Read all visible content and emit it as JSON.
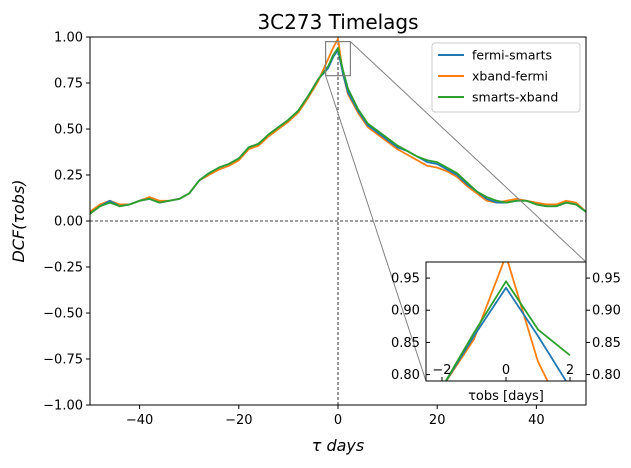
{
  "chart_data": {
    "type": "line",
    "title": "3C273     Timelags",
    "xlabel": "τ  days",
    "ylabel": "DCF(τobs)",
    "xlim": [
      -50,
      50
    ],
    "ylim": [
      -1.0,
      1.0
    ],
    "xticks": [
      -40,
      -20,
      0,
      20,
      40
    ],
    "yticks": [
      -1.0,
      -0.75,
      -0.5,
      -0.25,
      0.0,
      0.25,
      0.5,
      0.75,
      1.0
    ],
    "xtick_labels": [
      "−40",
      "−20",
      "0",
      "20",
      "40"
    ],
    "ytick_labels": [
      "−1.00",
      "−0.75",
      "−0.50",
      "−0.25",
      "0.00",
      "0.25",
      "0.50",
      "0.75",
      "1.00"
    ],
    "grid": false,
    "legend_position": "top-right",
    "reference_lines": {
      "horizontal_y": 0,
      "vertical_x": 0
    },
    "colors": {
      "fermi-smarts": "#1f77b4",
      "xband-fermi": "#ff7f0e",
      "smarts-xband": "#2ca02c"
    },
    "x": [
      -50,
      -48,
      -46,
      -44,
      -42,
      -40,
      -38,
      -36,
      -34,
      -32,
      -30,
      -28,
      -26,
      -24,
      -22,
      -20,
      -18,
      -16,
      -14,
      -12,
      -10,
      -8,
      -6,
      -4,
      -2,
      -1,
      0,
      1,
      2,
      4,
      6,
      8,
      10,
      12,
      14,
      16,
      18,
      20,
      22,
      24,
      26,
      28,
      30,
      32,
      34,
      36,
      38,
      40,
      42,
      44,
      46,
      48,
      50
    ],
    "series": [
      {
        "name": "fermi-smarts",
        "values": [
          0.04,
          0.08,
          0.11,
          0.08,
          0.09,
          0.11,
          0.12,
          0.1,
          0.11,
          0.12,
          0.15,
          0.22,
          0.26,
          0.29,
          0.31,
          0.34,
          0.4,
          0.42,
          0.47,
          0.51,
          0.55,
          0.6,
          0.68,
          0.77,
          0.83,
          0.89,
          0.93,
          0.8,
          0.7,
          0.6,
          0.52,
          0.48,
          0.44,
          0.4,
          0.38,
          0.35,
          0.32,
          0.31,
          0.28,
          0.25,
          0.2,
          0.16,
          0.12,
          0.1,
          0.1,
          0.11,
          0.11,
          0.09,
          0.08,
          0.08,
          0.1,
          0.09,
          0.05
        ]
      },
      {
        "name": "xband-fermi",
        "values": [
          0.05,
          0.09,
          0.11,
          0.09,
          0.09,
          0.11,
          0.13,
          0.11,
          0.11,
          0.12,
          0.15,
          0.22,
          0.25,
          0.28,
          0.3,
          0.33,
          0.39,
          0.41,
          0.46,
          0.5,
          0.54,
          0.59,
          0.67,
          0.76,
          0.88,
          0.94,
          0.99,
          0.8,
          0.69,
          0.59,
          0.51,
          0.47,
          0.43,
          0.39,
          0.36,
          0.33,
          0.3,
          0.29,
          0.27,
          0.24,
          0.19,
          0.15,
          0.11,
          0.1,
          0.11,
          0.12,
          0.11,
          0.1,
          0.09,
          0.09,
          0.11,
          0.1,
          0.05
        ]
      },
      {
        "name": "smarts-xband",
        "values": [
          0.04,
          0.08,
          0.1,
          0.08,
          0.09,
          0.11,
          0.12,
          0.1,
          0.11,
          0.12,
          0.15,
          0.22,
          0.26,
          0.29,
          0.31,
          0.34,
          0.4,
          0.42,
          0.47,
          0.51,
          0.55,
          0.6,
          0.68,
          0.77,
          0.84,
          0.9,
          0.94,
          0.82,
          0.72,
          0.61,
          0.53,
          0.49,
          0.45,
          0.41,
          0.38,
          0.35,
          0.33,
          0.32,
          0.29,
          0.26,
          0.21,
          0.16,
          0.13,
          0.11,
          0.1,
          0.11,
          0.11,
          0.09,
          0.08,
          0.08,
          0.1,
          0.09,
          0.05
        ]
      }
    ],
    "inset": {
      "xlim": [
        -2.5,
        2.5
      ],
      "ylim": [
        0.79,
        0.975
      ],
      "xticks": [
        -2,
        0,
        2
      ],
      "yticks": [
        0.8,
        0.85,
        0.9,
        0.95
      ],
      "xtick_labels": [
        "−2",
        "0",
        "2"
      ],
      "ytick_labels": [
        "0.80",
        "0.85",
        "0.90",
        "0.95"
      ],
      "xlabel": "τobs [days]",
      "x": [
        -2,
        -1,
        0,
        1,
        2
      ],
      "series": [
        {
          "name": "fermi-smarts",
          "values": [
            0.78,
            0.86,
            0.935,
            0.86,
            0.78
          ]
        },
        {
          "name": "xband-fermi",
          "values": [
            0.78,
            0.855,
            0.985,
            0.82,
            0.72
          ]
        },
        {
          "name": "smarts-xband",
          "values": [
            0.78,
            0.865,
            0.945,
            0.87,
            0.83
          ]
        }
      ]
    }
  }
}
